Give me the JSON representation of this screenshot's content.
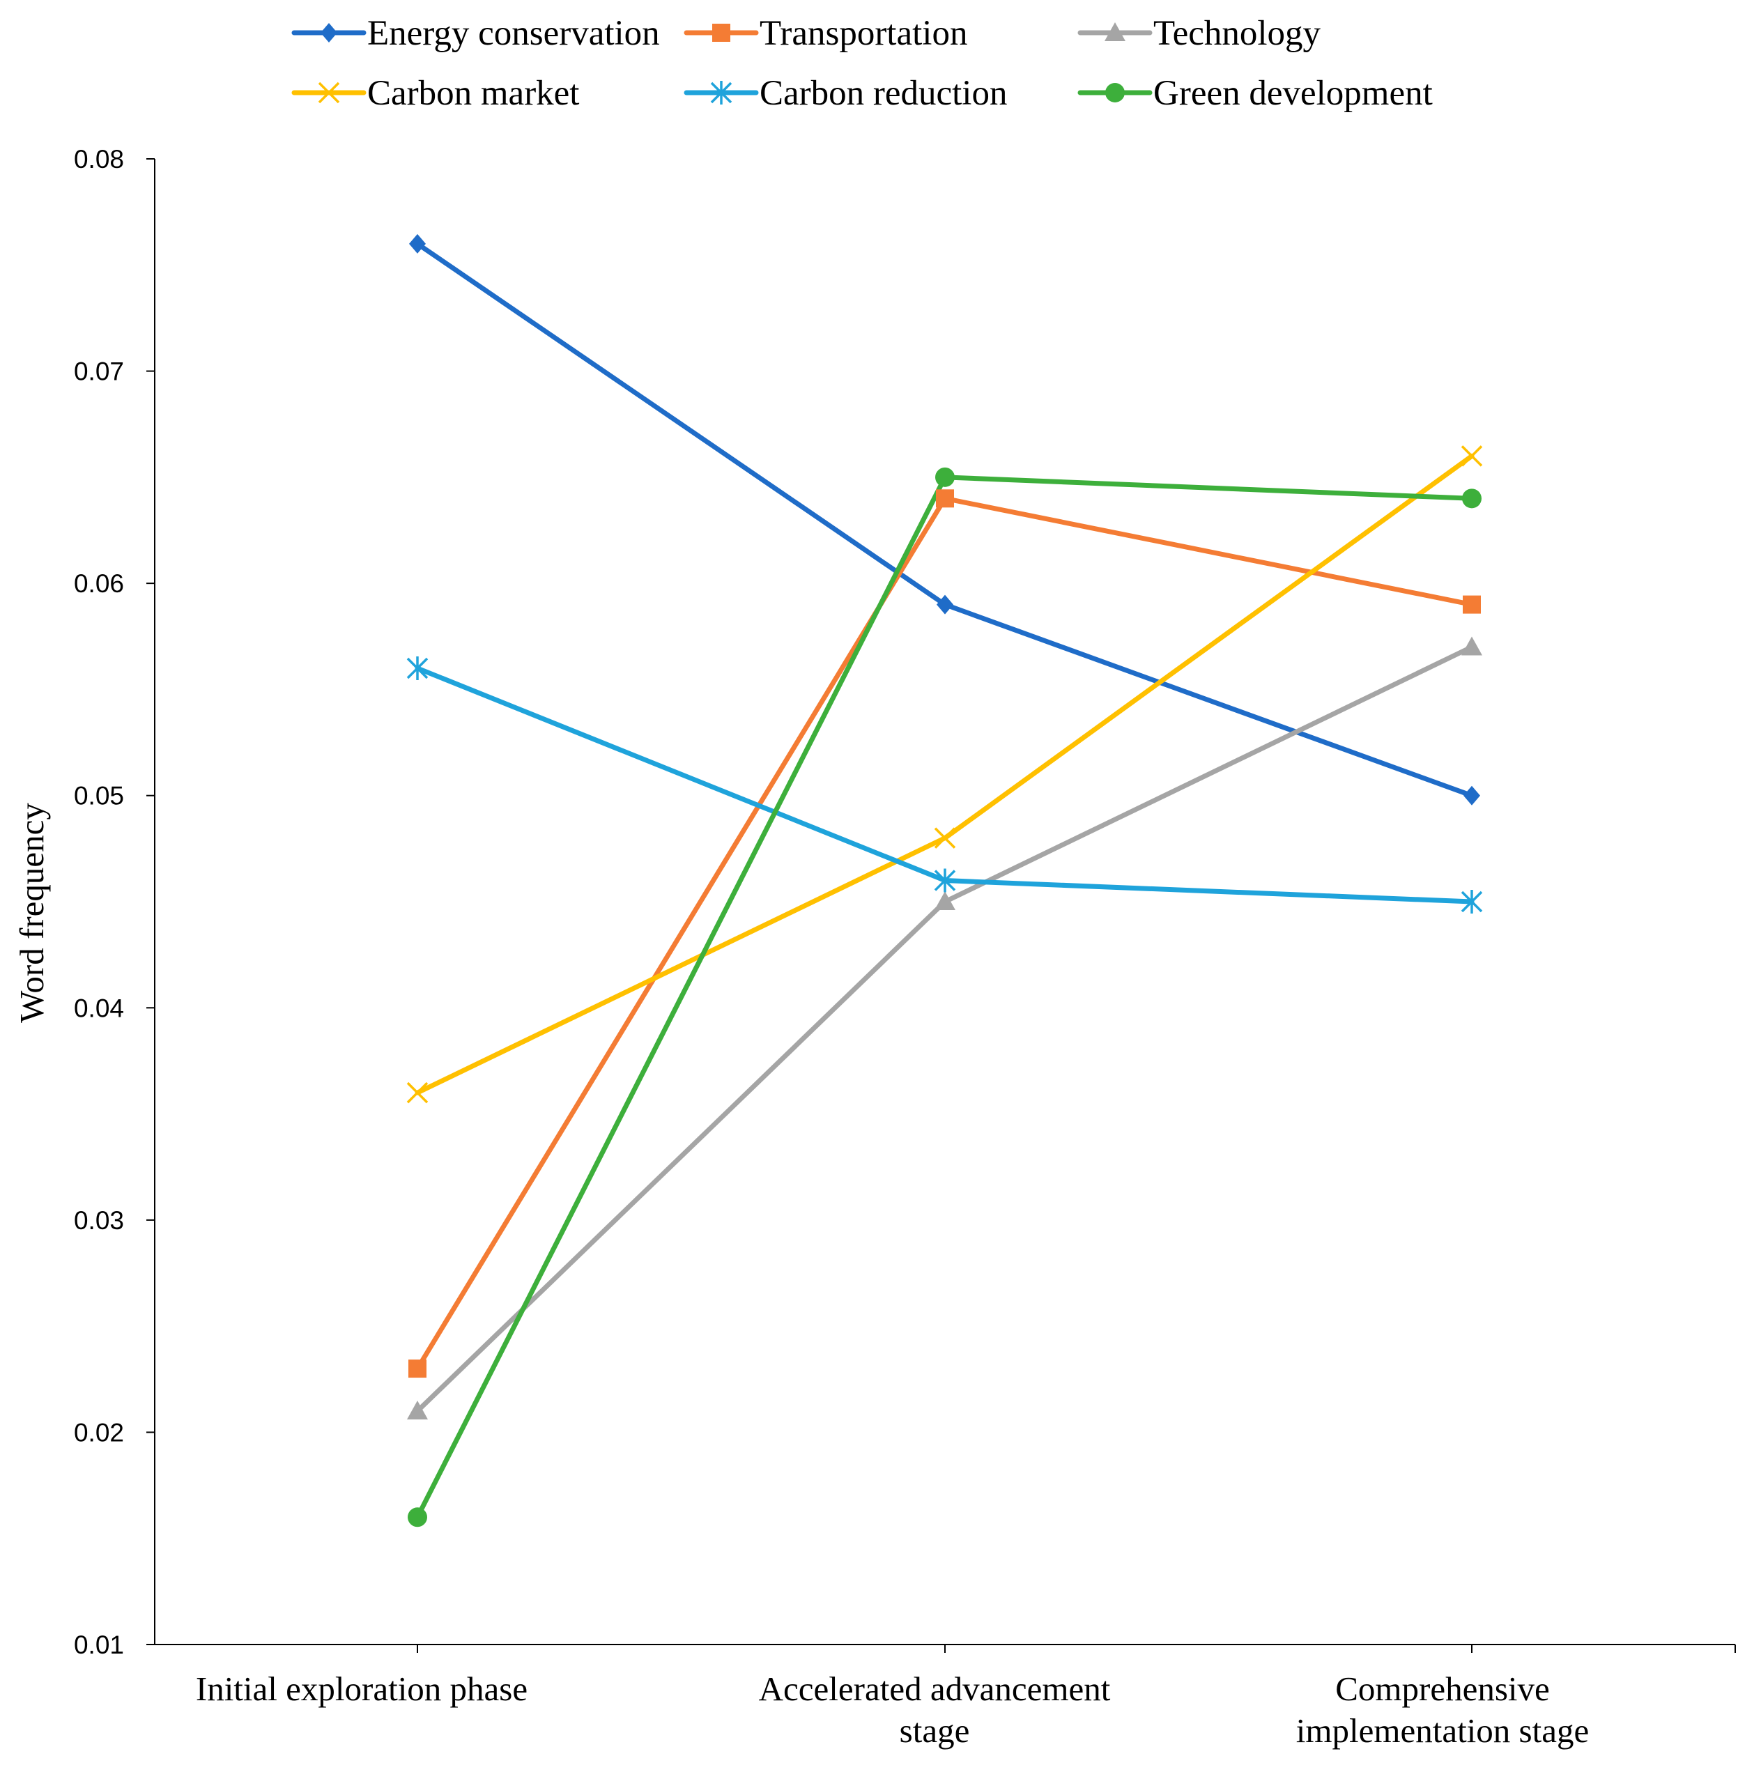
{
  "chart_data": {
    "type": "line",
    "title": "",
    "xlabel": "",
    "ylabel": "Word frequency",
    "ylim": [
      0.01,
      0.08
    ],
    "y_ticks": [
      "0.01",
      "0.02",
      "0.03",
      "0.04",
      "0.05",
      "0.06",
      "0.07",
      "0.08"
    ],
    "grid": false,
    "legend_position": "top",
    "categories": [
      [
        "Initial exploration phase"
      ],
      [
        "Accelerated advancement",
        "stage"
      ],
      [
        "Comprehensive",
        "implementation stage"
      ]
    ],
    "series": [
      {
        "name": "Energy conservation",
        "color": "#1F6CC8",
        "marker": "diamond",
        "values": [
          0.076,
          0.059,
          0.05
        ]
      },
      {
        "name": "Transportation",
        "color": "#F47C34",
        "marker": "square",
        "values": [
          0.023,
          0.064,
          0.059
        ]
      },
      {
        "name": "Technology",
        "color": "#A5A5A5",
        "marker": "triangle",
        "values": [
          0.021,
          0.045,
          0.057
        ]
      },
      {
        "name": "Carbon market",
        "color": "#FFC000",
        "marker": "x",
        "values": [
          0.036,
          0.048,
          0.066
        ]
      },
      {
        "name": "Carbon reduction",
        "color": "#1FA3DB",
        "marker": "star",
        "values": [
          0.056,
          0.046,
          0.045
        ]
      },
      {
        "name": "Green development",
        "color": "#3DAF3B",
        "marker": "circle",
        "values": [
          0.016,
          0.065,
          0.064
        ]
      }
    ]
  }
}
